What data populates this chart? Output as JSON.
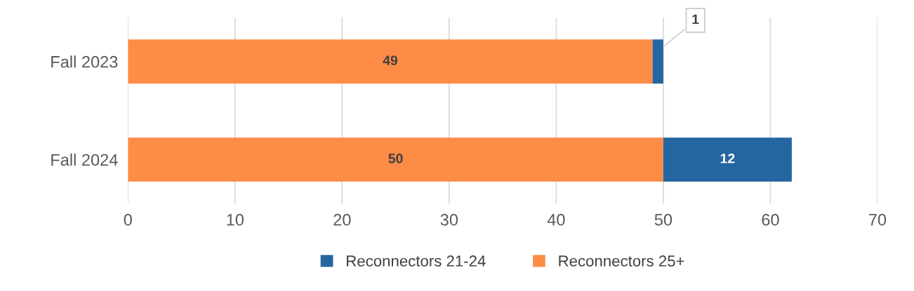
{
  "chart_data": {
    "type": "bar",
    "orientation": "horizontal",
    "stacked": true,
    "categories": [
      "Fall 2023",
      "Fall 2024"
    ],
    "series": [
      {
        "name": "Reconnectors 25+",
        "color": "#fd8c47",
        "values": [
          49,
          50
        ]
      },
      {
        "name": "Reconnectors 21-24",
        "color": "#2566a0",
        "values": [
          1,
          12
        ]
      }
    ],
    "xlim": [
      0,
      70
    ],
    "xticks": [
      0,
      10,
      20,
      30,
      40,
      50,
      60,
      70
    ],
    "grid": "x",
    "legend": "bottom",
    "data_labels": true
  }
}
